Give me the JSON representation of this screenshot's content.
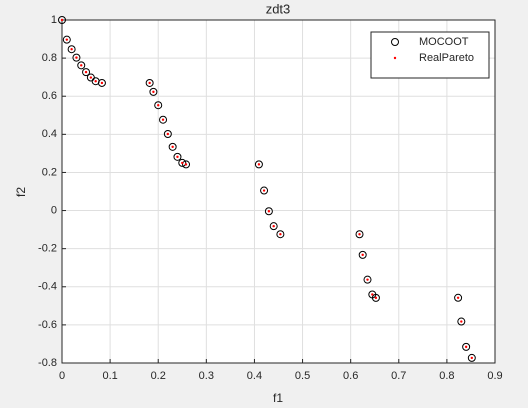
{
  "chart_data": {
    "type": "scatter",
    "title": "zdt3",
    "x_label": "f1",
    "y_label": "f2",
    "xlim": [
      0,
      0.9
    ],
    "xticks": [
      0,
      0.1,
      0.2,
      0.3,
      0.4,
      0.5,
      0.6,
      0.7,
      0.8,
      0.9
    ],
    "ylim": [
      -0.8,
      1
    ],
    "yticks": [
      -0.8,
      -0.6,
      -0.4,
      -0.2,
      0,
      0.2,
      0.4,
      0.6,
      0.8,
      1
    ],
    "grid": true,
    "legend": "northeast",
    "series": [
      {
        "name": "MOCOOT",
        "color": "#000000",
        "marker": "circle",
        "x": [
          0,
          0.01,
          0.02,
          0.03,
          0.04,
          0.05,
          0.06,
          0.07,
          0.083,
          0.1822,
          0.19,
          0.2,
          0.21,
          0.22,
          0.23,
          0.24,
          0.25,
          0.2578,
          0.4093,
          0.42,
          0.43,
          0.44,
          0.4539,
          0.6184,
          0.625,
          0.635,
          0.645,
          0.6525,
          0.8233,
          0.83,
          0.84,
          0.8518
        ],
        "values": [
          1,
          0.8969,
          0.8468,
          0.8025,
          0.762,
          0.7264,
          0.698,
          0.6788,
          0.6697,
          0.6695,
          0.6228,
          0.5528,
          0.4768,
          0.4017,
          0.3343,
          0.2818,
          0.25,
          0.2422,
          0.2424,
          0.105,
          -0.0036,
          -0.0818,
          -0.1241,
          -0.1243,
          -0.2325,
          -0.3627,
          -0.4402,
          -0.4583,
          -0.4577,
          -0.5825,
          -0.7154,
          -0.7733
        ]
      },
      {
        "name": "RealPareto",
        "color": "#ff0000",
        "marker": "dot",
        "x": [
          0,
          0.01,
          0.02,
          0.03,
          0.04,
          0.05,
          0.06,
          0.07,
          0.083,
          0.1822,
          0.19,
          0.2,
          0.21,
          0.22,
          0.23,
          0.24,
          0.25,
          0.2578,
          0.4093,
          0.42,
          0.43,
          0.44,
          0.4539,
          0.6184,
          0.625,
          0.635,
          0.645,
          0.6525,
          0.8233,
          0.83,
          0.84,
          0.8518
        ],
        "values": [
          1,
          0.8969,
          0.8468,
          0.8025,
          0.762,
          0.7264,
          0.698,
          0.6788,
          0.6697,
          0.6695,
          0.6228,
          0.5528,
          0.4768,
          0.4017,
          0.3343,
          0.2818,
          0.25,
          0.2422,
          0.2424,
          0.105,
          -0.0036,
          -0.0818,
          -0.1241,
          -0.1243,
          -0.2325,
          -0.3627,
          -0.4402,
          -0.4583,
          -0.4577,
          -0.5825,
          -0.7154,
          -0.7733
        ]
      }
    ]
  }
}
